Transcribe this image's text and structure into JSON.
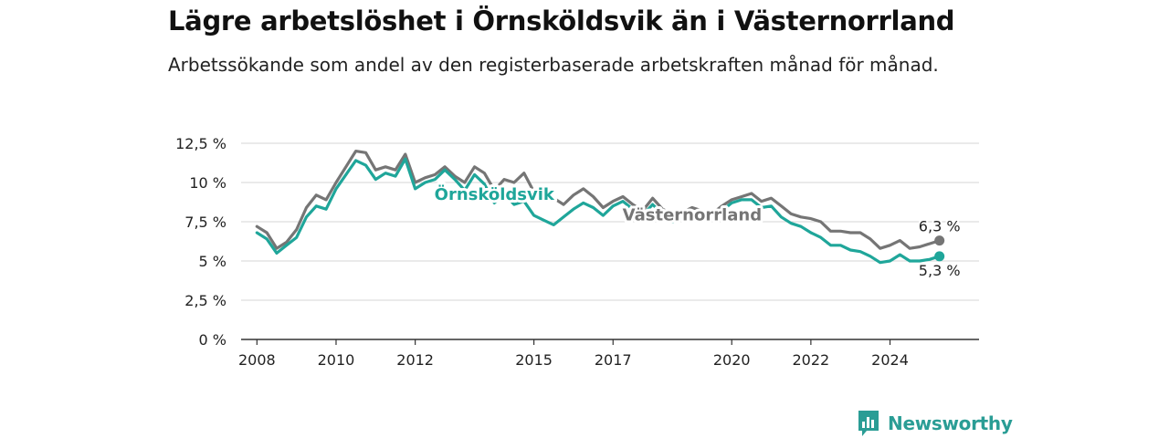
{
  "header": {
    "title": "Lägre arbetslöshet i Örnsköldsvik än i Västernorrland",
    "subtitle": "Arbetssökande som andel av den registerbaserade arbetskraften månad för månad."
  },
  "brand": {
    "name": "Newsworthy",
    "color": "#2a9d95",
    "icon": "newsworthy-logo-icon"
  },
  "chart_data": {
    "type": "line",
    "title": "Lägre arbetslöshet i Örnsköldsvik än i Västernorrland",
    "subtitle": "Arbetssökande som andel av den registerbaserade arbetskraften månad för månad.",
    "xlabel": "",
    "ylabel": "",
    "ylim": [
      0,
      12.5
    ],
    "y_ticks": [
      0,
      2.5,
      5,
      7.5,
      10,
      12.5
    ],
    "y_tick_labels": [
      "0 %",
      "2,5 %",
      "5 %",
      "7,5 %",
      "10 %",
      "12,5 %"
    ],
    "x_ticks": [
      2008,
      2010,
      2012,
      2015,
      2017,
      2020,
      2022,
      2024
    ],
    "xlim": [
      2007.6,
      2026.25
    ],
    "grid": true,
    "series": [
      {
        "name": "Västernorrland",
        "color": "#757575",
        "end_label": "6,3 %",
        "points": [
          [
            2008.0,
            7.2
          ],
          [
            2008.25,
            6.8
          ],
          [
            2008.5,
            5.8
          ],
          [
            2008.75,
            6.2
          ],
          [
            2009.0,
            7.0
          ],
          [
            2009.25,
            8.4
          ],
          [
            2009.5,
            9.2
          ],
          [
            2009.75,
            8.9
          ],
          [
            2010.0,
            10.0
          ],
          [
            2010.25,
            11.0
          ],
          [
            2010.5,
            12.0
          ],
          [
            2010.75,
            11.9
          ],
          [
            2011.0,
            10.8
          ],
          [
            2011.25,
            11.0
          ],
          [
            2011.5,
            10.8
          ],
          [
            2011.75,
            11.8
          ],
          [
            2012.0,
            10.0
          ],
          [
            2012.25,
            10.3
          ],
          [
            2012.5,
            10.5
          ],
          [
            2012.75,
            11.0
          ],
          [
            2013.0,
            10.4
          ],
          [
            2013.25,
            10.0
          ],
          [
            2013.5,
            11.0
          ],
          [
            2013.75,
            10.6
          ],
          [
            2014.0,
            9.5
          ],
          [
            2014.25,
            10.2
          ],
          [
            2014.5,
            10.0
          ],
          [
            2014.75,
            10.6
          ],
          [
            2015.0,
            9.4
          ],
          [
            2015.25,
            9.3
          ],
          [
            2015.5,
            9.0
          ],
          [
            2015.75,
            8.6
          ],
          [
            2016.0,
            9.2
          ],
          [
            2016.25,
            9.6
          ],
          [
            2016.5,
            9.1
          ],
          [
            2016.75,
            8.4
          ],
          [
            2017.0,
            8.8
          ],
          [
            2017.25,
            9.1
          ],
          [
            2017.5,
            8.6
          ],
          [
            2017.75,
            8.2
          ],
          [
            2018.0,
            9.0
          ],
          [
            2018.25,
            8.3
          ],
          [
            2018.5,
            8.0
          ],
          [
            2018.75,
            8.1
          ],
          [
            2019.0,
            8.4
          ],
          [
            2019.25,
            8.2
          ],
          [
            2019.5,
            8.0
          ],
          [
            2019.75,
            8.5
          ],
          [
            2020.0,
            8.9
          ],
          [
            2020.25,
            9.1
          ],
          [
            2020.5,
            9.3
          ],
          [
            2020.75,
            8.8
          ],
          [
            2021.0,
            9.0
          ],
          [
            2021.25,
            8.5
          ],
          [
            2021.5,
            8.0
          ],
          [
            2021.75,
            7.8
          ],
          [
            2022.0,
            7.7
          ],
          [
            2022.25,
            7.5
          ],
          [
            2022.5,
            6.9
          ],
          [
            2022.75,
            6.9
          ],
          [
            2023.0,
            6.8
          ],
          [
            2023.25,
            6.8
          ],
          [
            2023.5,
            6.4
          ],
          [
            2023.75,
            5.8
          ],
          [
            2024.0,
            6.0
          ],
          [
            2024.25,
            6.3
          ],
          [
            2024.5,
            5.8
          ],
          [
            2024.75,
            5.9
          ],
          [
            2025.0,
            6.1
          ],
          [
            2025.25,
            6.3
          ]
        ]
      },
      {
        "name": "Örnsköldsvik",
        "color": "#1fa69a",
        "end_label": "5,3 %",
        "points": [
          [
            2008.0,
            6.8
          ],
          [
            2008.25,
            6.4
          ],
          [
            2008.5,
            5.5
          ],
          [
            2008.75,
            6.0
          ],
          [
            2009.0,
            6.5
          ],
          [
            2009.25,
            7.8
          ],
          [
            2009.5,
            8.5
          ],
          [
            2009.75,
            8.3
          ],
          [
            2010.0,
            9.6
          ],
          [
            2010.25,
            10.5
          ],
          [
            2010.5,
            11.4
          ],
          [
            2010.75,
            11.1
          ],
          [
            2011.0,
            10.2
          ],
          [
            2011.25,
            10.6
          ],
          [
            2011.5,
            10.4
          ],
          [
            2011.75,
            11.5
          ],
          [
            2012.0,
            9.6
          ],
          [
            2012.25,
            10.0
          ],
          [
            2012.5,
            10.2
          ],
          [
            2012.75,
            10.8
          ],
          [
            2013.0,
            10.2
          ],
          [
            2013.25,
            9.5
          ],
          [
            2013.5,
            10.5
          ],
          [
            2013.75,
            9.9
          ],
          [
            2014.0,
            8.7
          ],
          [
            2014.25,
            9.3
          ],
          [
            2014.5,
            8.6
          ],
          [
            2014.75,
            8.8
          ],
          [
            2015.0,
            7.9
          ],
          [
            2015.25,
            7.6
          ],
          [
            2015.5,
            7.3
          ],
          [
            2015.75,
            7.8
          ],
          [
            2016.0,
            8.3
          ],
          [
            2016.25,
            8.7
          ],
          [
            2016.5,
            8.4
          ],
          [
            2016.75,
            7.9
          ],
          [
            2017.0,
            8.5
          ],
          [
            2017.25,
            8.8
          ],
          [
            2017.5,
            8.3
          ],
          [
            2017.75,
            7.9
          ],
          [
            2018.0,
            8.6
          ],
          [
            2018.25,
            8.0
          ],
          [
            2018.5,
            7.5
          ],
          [
            2018.75,
            7.7
          ],
          [
            2019.0,
            8.1
          ],
          [
            2019.25,
            8.0
          ],
          [
            2019.5,
            7.8
          ],
          [
            2019.75,
            8.2
          ],
          [
            2020.0,
            8.7
          ],
          [
            2020.25,
            8.9
          ],
          [
            2020.5,
            8.9
          ],
          [
            2020.75,
            8.4
          ],
          [
            2021.0,
            8.5
          ],
          [
            2021.25,
            7.8
          ],
          [
            2021.5,
            7.4
          ],
          [
            2021.75,
            7.2
          ],
          [
            2022.0,
            6.8
          ],
          [
            2022.25,
            6.5
          ],
          [
            2022.5,
            6.0
          ],
          [
            2022.75,
            6.0
          ],
          [
            2023.0,
            5.7
          ],
          [
            2023.25,
            5.6
          ],
          [
            2023.5,
            5.3
          ],
          [
            2023.75,
            4.9
          ],
          [
            2024.0,
            5.0
          ],
          [
            2024.25,
            5.4
          ],
          [
            2024.5,
            5.0
          ],
          [
            2024.75,
            5.0
          ],
          [
            2025.0,
            5.1
          ],
          [
            2025.25,
            5.3
          ]
        ]
      }
    ],
    "annotations": [
      {
        "text": "Örnsköldsvik",
        "series": "Örnsköldsvik",
        "x": 2014.0,
        "y": 9.3
      },
      {
        "text": "Västernorrland",
        "series": "Västernorrland",
        "x": 2019.0,
        "y": 8.0
      }
    ]
  }
}
